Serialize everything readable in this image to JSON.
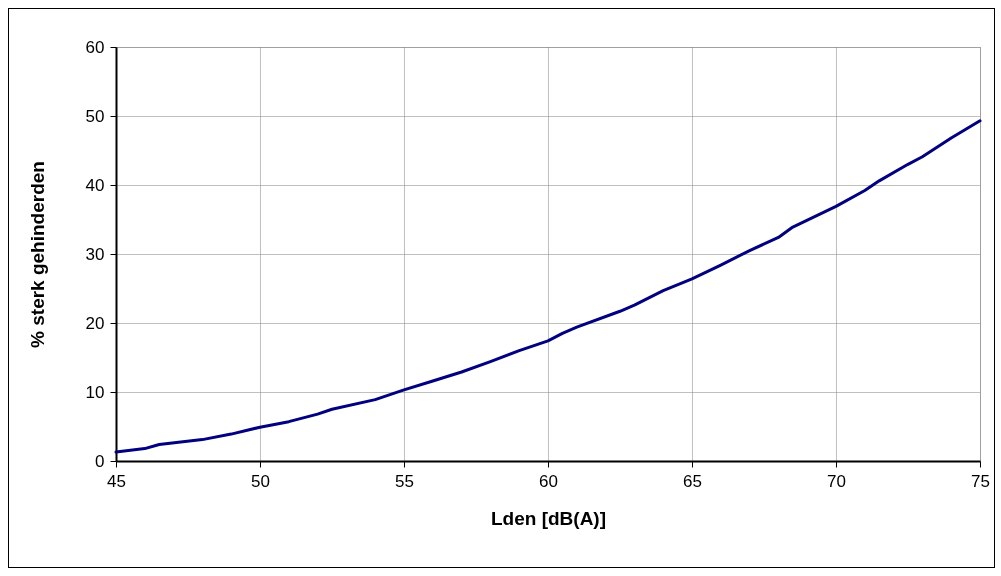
{
  "chart_data": {
    "type": "line",
    "xlabel": "Lden [dB(A)]",
    "ylabel": "% sterk gehinderden",
    "x": [
      45,
      46,
      46.5,
      48,
      49,
      50,
      51,
      52,
      52.5,
      54,
      55,
      56,
      57,
      58,
      59,
      60,
      60.5,
      61,
      62.5,
      63,
      64,
      65,
      66,
      67,
      68,
      68.5,
      70,
      71,
      71.5,
      72.5,
      73,
      74,
      75
    ],
    "series": [
      {
        "color": "#000080",
        "values": [
          1.3,
          1.8,
          2.4,
          3.1,
          3.9,
          4.9,
          5.7,
          6.8,
          7.5,
          8.9,
          10.3,
          11.6,
          12.9,
          14.4,
          16.0,
          17.4,
          18.5,
          19.4,
          21.7,
          22.6,
          24.7,
          26.4,
          28.4,
          30.5,
          32.4,
          33.9,
          36.9,
          39.2,
          40.6,
          43.0,
          44.1,
          46.8,
          49.3
        ]
      }
    ],
    "xlim": [
      45,
      75
    ],
    "xticks": [
      45,
      50,
      55,
      60,
      65,
      70,
      75
    ],
    "ylim": [
      0,
      60
    ],
    "yticks": [
      0,
      10,
      20,
      30,
      40,
      50,
      60
    ],
    "grid": true,
    "marker": "none",
    "line_style": "solid"
  }
}
